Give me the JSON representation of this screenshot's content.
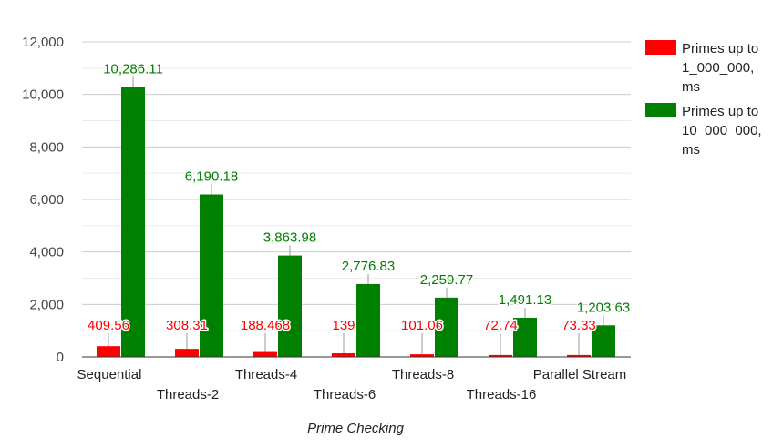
{
  "chart_data": {
    "type": "bar",
    "title": "",
    "xlabel": "Prime Checking",
    "ylabel": "",
    "ylim": [
      0,
      12000
    ],
    "yticks": [
      0,
      2000,
      4000,
      6000,
      8000,
      10000,
      12000
    ],
    "ytick_labels": [
      "0",
      "2,000",
      "4,000",
      "6,000",
      "8,000",
      "10,000",
      "12,000"
    ],
    "grid": true,
    "legend_position": "right",
    "categories": [
      "Sequential",
      "Threads-2",
      "Threads-4",
      "Threads-6",
      "Threads-8",
      "Threads-16",
      "Parallel Stream"
    ],
    "series": [
      {
        "name": "Primes up to 1_000_000, ms",
        "legend_lines": [
          "Primes up to",
          "1_000_000,",
          "ms"
        ],
        "color": "#ff0000",
        "values": [
          409.56,
          308.31,
          188.468,
          139,
          101.06,
          72.74,
          73.33
        ],
        "labels": [
          "409.56",
          "308.31",
          "188.468",
          "139",
          "101.06",
          "72.74",
          "73.33"
        ]
      },
      {
        "name": "Primes up to 10_000_000, ms",
        "legend_lines": [
          "Primes up to",
          "10_000_000,",
          "ms"
        ],
        "color": "#008000",
        "values": [
          10286.11,
          6190.18,
          3863.98,
          2776.83,
          2259.77,
          1491.13,
          1203.63
        ],
        "labels": [
          "10,286.11",
          "6,190.18",
          "3,863.98",
          "2,776.83",
          "2,259.77",
          "1,491.13",
          "1,203.63"
        ]
      }
    ]
  }
}
